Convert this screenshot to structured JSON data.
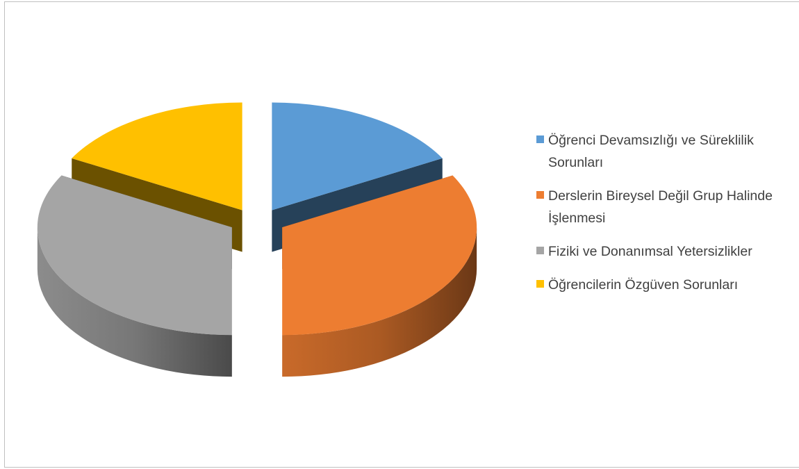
{
  "chart_data": {
    "type": "pie",
    "style": "3d-exploded",
    "title": "",
    "slices": [
      {
        "label": "Öğrenci Devamsızlığı ve Süreklilik Sorunları",
        "value": 17,
        "color": "#5b9bd5"
      },
      {
        "label": "Derslerin Bireysel Değil Grup Halinde İşlenmesi",
        "value": 33,
        "color": "#ed7d31"
      },
      {
        "label": "Fiziki ve Donanımsal Yetersizlikler",
        "value": 33,
        "color": "#a5a5a5"
      },
      {
        "label": "Öğrencilerin Özgüven Sorunları",
        "value": 17,
        "color": "#ffc000"
      }
    ],
    "legend_position": "right"
  },
  "legend": {
    "items": [
      {
        "text": "Öğrenci Devamsızlığı ve Süreklilik Sorunları"
      },
      {
        "text": "Derslerin Bireysel Değil Grup Halinde İşlenmesi"
      },
      {
        "text": "Fiziki ve Donanımsal Yetersizlikler"
      },
      {
        "text": "Öğrencilerin Özgüven Sorunları"
      }
    ]
  }
}
